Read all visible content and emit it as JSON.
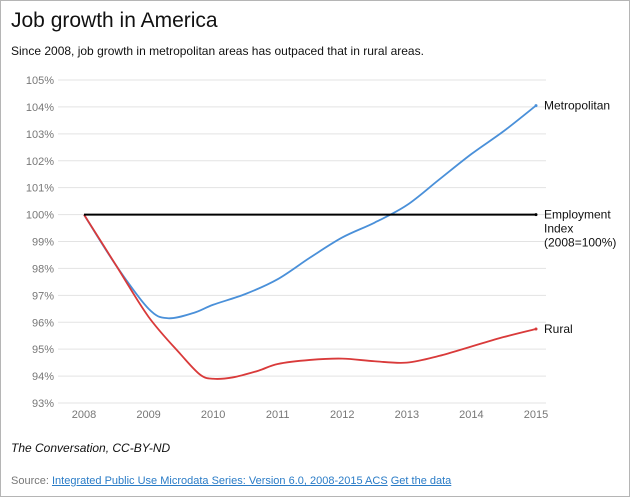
{
  "header": {
    "title": "Job growth in America",
    "subtitle": "Since 2008, job growth in metropolitan areas has outpaced that in rural areas."
  },
  "footer": {
    "credit": "The Conversation, CC-BY-ND",
    "source_prefix": "Source:",
    "source_link": "Integrated Public Use Microdata Series: Version 6.0, 2008-2015 ACS",
    "data_link": "Get the data"
  },
  "chart_data": {
    "type": "line",
    "title": "Job growth in America",
    "subtitle": "Since 2008, job growth in metropolitan areas has outpaced that in rural areas.",
    "xlabel": "",
    "ylabel": "",
    "xlim": [
      2008,
      2015
    ],
    "ylim": [
      93,
      105
    ],
    "x_ticks": [
      "2008",
      "2009",
      "2010",
      "2011",
      "2012",
      "2013",
      "2014",
      "2015"
    ],
    "y_ticks": [
      "93%",
      "94%",
      "95%",
      "96%",
      "97%",
      "98%",
      "99%",
      "100%",
      "101%",
      "102%",
      "103%",
      "104%",
      "105%"
    ],
    "grid": "horizontal",
    "series": [
      {
        "name": "Metropolitan",
        "color": "#4a90d9",
        "x": [
          2008,
          2008.5,
          2009,
          2009.3,
          2009.7,
          2010,
          2010.5,
          2011,
          2011.5,
          2012,
          2012.5,
          2013,
          2013.5,
          2014,
          2014.5,
          2015
        ],
        "y": [
          100,
          98.1,
          96.5,
          96.15,
          96.35,
          96.65,
          97.05,
          97.6,
          98.4,
          99.15,
          99.7,
          100.35,
          101.3,
          102.25,
          103.1,
          104.05
        ]
      },
      {
        "name": "Rural",
        "color": "#d93a3a",
        "x": [
          2008,
          2008.5,
          2009,
          2009.5,
          2009.8,
          2010,
          2010.3,
          2010.7,
          2011,
          2011.5,
          2012,
          2012.5,
          2013,
          2013.5,
          2014,
          2014.5,
          2015
        ],
        "y": [
          100,
          98.1,
          96.2,
          94.8,
          94.05,
          93.9,
          93.95,
          94.2,
          94.45,
          94.6,
          94.65,
          94.55,
          94.5,
          94.75,
          95.1,
          95.45,
          95.75
        ]
      },
      {
        "name": "Employment Index (2008=100%)",
        "label_lines": [
          "Employment",
          "Index",
          "(2008=100%)"
        ],
        "color": "#000000",
        "x": [
          2008,
          2015
        ],
        "y": [
          100,
          100
        ]
      }
    ],
    "legend": "inline-right"
  }
}
